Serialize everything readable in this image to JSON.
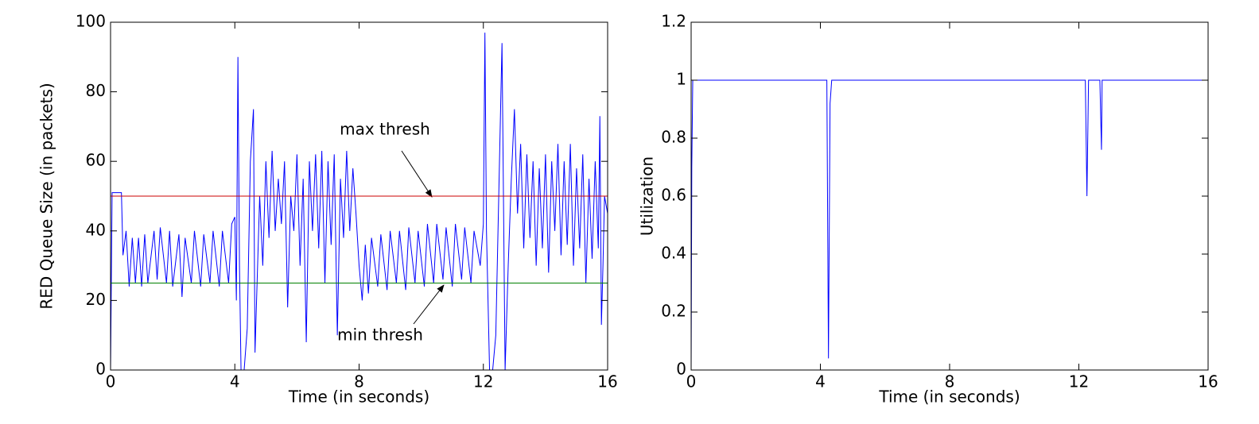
{
  "chart_data": [
    {
      "type": "line",
      "xlabel": "Time (in seconds)",
      "ylabel": "RED Queue Size (in packets)",
      "xlim": [
        0,
        16
      ],
      "ylim": [
        0,
        100
      ],
      "xticks": [
        0,
        4,
        8,
        12,
        16
      ],
      "yticks": [
        0,
        20,
        40,
        60,
        80,
        100
      ],
      "annotations": [
        "max thresh",
        "min thresh"
      ],
      "series": [
        {
          "color": "#0000ff",
          "x": [
            0,
            0.05,
            0.3,
            0.35,
            0.4,
            0.5,
            0.6,
            0.7,
            0.8,
            0.9,
            1.0,
            1.1,
            1.2,
            1.4,
            1.5,
            1.6,
            1.8,
            1.9,
            2.0,
            2.2,
            2.3,
            2.4,
            2.6,
            2.7,
            2.9,
            3.0,
            3.2,
            3.3,
            3.5,
            3.6,
            3.8,
            3.9,
            4.0,
            4.05,
            4.1,
            4.15,
            4.2,
            4.3,
            4.4,
            4.5,
            4.6,
            4.65,
            4.7,
            4.8,
            4.9,
            5.0,
            5.1,
            5.2,
            5.3,
            5.4,
            5.5,
            5.6,
            5.7,
            5.8,
            5.9,
            6.0,
            6.1,
            6.2,
            6.3,
            6.4,
            6.5,
            6.6,
            6.7,
            6.8,
            6.9,
            7.0,
            7.1,
            7.2,
            7.3,
            7.4,
            7.5,
            7.6,
            7.7,
            7.8,
            7.9,
            8.0,
            8.1,
            8.2,
            8.3,
            8.4,
            8.6,
            8.7,
            8.9,
            9.0,
            9.2,
            9.3,
            9.5,
            9.6,
            9.8,
            9.9,
            10.1,
            10.2,
            10.4,
            10.5,
            10.7,
            10.8,
            11.0,
            11.1,
            11.3,
            11.4,
            11.6,
            11.7,
            11.9,
            12.0,
            12.05,
            12.1,
            12.2,
            12.3,
            12.4,
            12.6,
            12.7,
            12.8,
            12.9,
            13.0,
            13.1,
            13.2,
            13.3,
            13.4,
            13.5,
            13.6,
            13.7,
            13.8,
            13.9,
            14.0,
            14.1,
            14.2,
            14.3,
            14.4,
            14.5,
            14.6,
            14.7,
            14.8,
            14.9,
            15.0,
            15.1,
            15.2,
            15.3,
            15.4,
            15.5,
            15.6,
            15.7,
            15.75,
            15.8,
            15.85,
            15.9,
            16.0
          ],
          "values": [
            0,
            51,
            51,
            51,
            33,
            40,
            24,
            38,
            25,
            38,
            24,
            39,
            25,
            40,
            26,
            41,
            25,
            40,
            24,
            39,
            21,
            38,
            25,
            40,
            24,
            39,
            25,
            40,
            24,
            40,
            25,
            42,
            44,
            20,
            90,
            30,
            0,
            0,
            12,
            60,
            75,
            5,
            20,
            50,
            30,
            60,
            38,
            63,
            40,
            55,
            42,
            60,
            18,
            50,
            40,
            62,
            30,
            55,
            8,
            60,
            40,
            62,
            35,
            63,
            25,
            60,
            36,
            62,
            10,
            55,
            38,
            63,
            40,
            58,
            45,
            30,
            20,
            36,
            22,
            38,
            24,
            39,
            23,
            40,
            25,
            40,
            23,
            41,
            25,
            40,
            24,
            42,
            25,
            42,
            26,
            41,
            24,
            42,
            26,
            41,
            25,
            40,
            30,
            42,
            97,
            40,
            0,
            0,
            10,
            94,
            0,
            30,
            55,
            75,
            45,
            65,
            35,
            62,
            38,
            60,
            30,
            58,
            35,
            62,
            28,
            60,
            40,
            65,
            33,
            60,
            36,
            65,
            30,
            58,
            35,
            62,
            25,
            55,
            32,
            60,
            35,
            73,
            13,
            30,
            50,
            45
          ]
        },
        {
          "color": "#cc0000",
          "x": [
            0,
            16
          ],
          "values": [
            50,
            50
          ]
        },
        {
          "color": "#008000",
          "x": [
            0,
            16
          ],
          "values": [
            25,
            25
          ]
        }
      ]
    },
    {
      "type": "line",
      "xlabel": "Time (in seconds)",
      "ylabel": "Utilization",
      "xlim": [
        0,
        16
      ],
      "ylim": [
        0,
        1.2
      ],
      "xticks": [
        0,
        4,
        8,
        12,
        16
      ],
      "yticks": [
        0,
        0.2,
        0.4,
        0.6,
        0.8,
        1,
        1.2
      ],
      "series": [
        {
          "color": "#0000ff",
          "x": [
            0,
            0.02,
            0.05,
            4.2,
            4.25,
            4.3,
            4.35,
            12.2,
            12.25,
            12.3,
            12.65,
            12.7,
            12.72,
            16
          ],
          "values": [
            0,
            0.7,
            1,
            1,
            0.04,
            0.92,
            1,
            1,
            0.6,
            1,
            1,
            0.76,
            1,
            1
          ]
        }
      ]
    }
  ]
}
